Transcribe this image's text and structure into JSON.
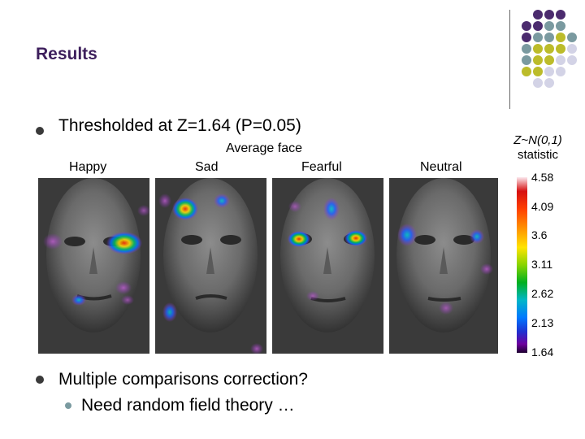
{
  "slide": {
    "title": "Results",
    "bullet1": "Thresholded at Z=1.64 (P=0.05)",
    "bullet2": "Multiple comparisons correction?",
    "sub_bullet": "Need random field theory …"
  },
  "figure": {
    "labels": {
      "happy": "Happy",
      "sad": "Sad",
      "average": "Average face",
      "fearful": "Fearful",
      "neutral": "Neutral"
    },
    "colorbar": {
      "title_line1": "Z~N(0,1)",
      "title_line2": "statistic",
      "ticks": [
        "4.58",
        "4.09",
        "3.6",
        "3.11",
        "2.62",
        "2.13",
        "1.64"
      ]
    }
  },
  "colors": {
    "title": "#3d1f5c",
    "dot_purple": "#4b2b6e",
    "dot_teal": "#7a9aa0",
    "dot_olive": "#bcbc2a",
    "dot_lavender": "#d3d3e6"
  }
}
